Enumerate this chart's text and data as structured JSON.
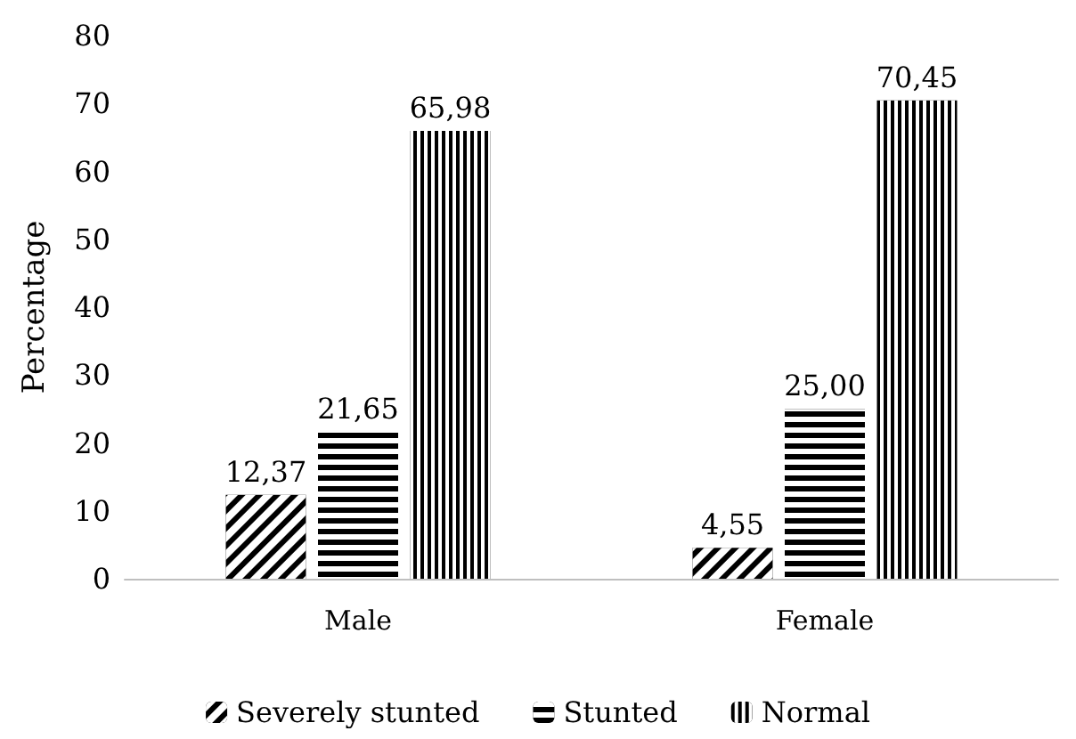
{
  "chart_data": {
    "type": "bar",
    "ylabel": "Percentage",
    "categories": [
      "Male",
      "Female"
    ],
    "series": [
      {
        "name": "Severely stunted",
        "color": "#000000",
        "values": [
          12.37,
          4.55
        ],
        "value_labels": [
          "12,37",
          "4,55"
        ]
      },
      {
        "name": "Stunted",
        "color": "#000000",
        "values": [
          21.65,
          25.0
        ],
        "value_labels": [
          "21,65",
          "25,00"
        ]
      },
      {
        "name": "Normal",
        "color": "#000000",
        "values": [
          65.98,
          70.45
        ],
        "value_labels": [
          "65,98",
          "70,45"
        ]
      }
    ],
    "ylim": [
      0,
      80
    ],
    "yticks": [
      0,
      10,
      20,
      30,
      40,
      50,
      60,
      70,
      80
    ],
    "grid": false,
    "legend": "bottom"
  }
}
